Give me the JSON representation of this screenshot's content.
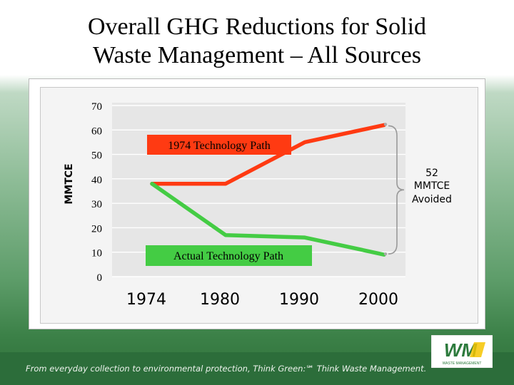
{
  "slide": {
    "title_line1": "Overall GHG Reductions for Solid",
    "title_line2": "Waste Management – All Sources",
    "tagline": "From everyday collection to environmental protection, Think Green:℠ Think Waste Management.",
    "logo_text": "WM",
    "logo_subtext": "WASTE MANAGEMENT"
  },
  "colors": {
    "tech_path_1974": "#ff3a12",
    "actual_path": "#44cc44",
    "footer": "#2c6d3a",
    "logo_green": "#2c7a3c",
    "logo_yellow": "#f6c400"
  },
  "chart_data": {
    "type": "line",
    "title": "",
    "ylabel": "MMTCE",
    "xlabel": "",
    "ylim": [
      0,
      70
    ],
    "y_ticks": [
      "0",
      "10",
      "20",
      "30",
      "40",
      "50",
      "60",
      "70"
    ],
    "x_tick_labels": [
      "1974",
      "1980",
      "1990",
      "2000"
    ],
    "grid": true,
    "series": [
      {
        "name": "1974 Technology Path",
        "points": [
          [
            1974,
            38
          ],
          [
            1980,
            38
          ],
          [
            1990,
            55
          ],
          [
            2000,
            62
          ]
        ]
      },
      {
        "name": "Actual Technology Path",
        "points": [
          [
            1974,
            38
          ],
          [
            1980,
            17
          ],
          [
            1990,
            16
          ],
          [
            2000,
            9
          ]
        ]
      }
    ],
    "annotations": {
      "gap_line1": "52",
      "gap_line2": "MMTCE",
      "gap_line3": "Avoided"
    }
  }
}
